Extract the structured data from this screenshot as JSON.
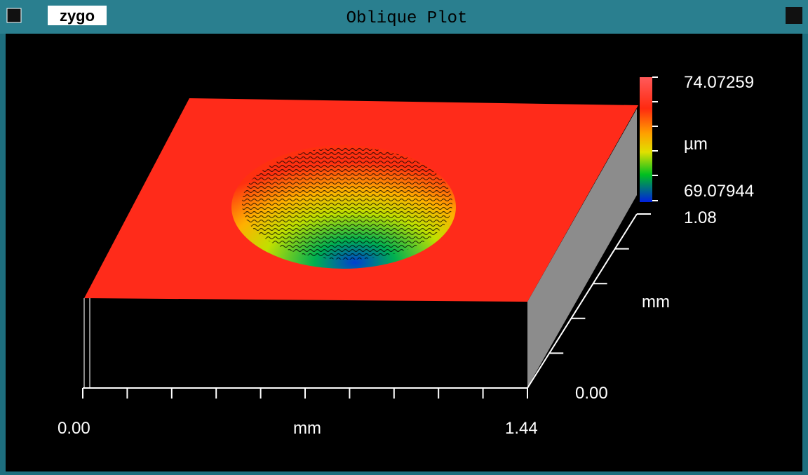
{
  "window": {
    "logo": "zygo",
    "title": "Oblique Plot"
  },
  "colorbar": {
    "max_label": "74.07259",
    "unit": "µm",
    "min_label": "69.07944"
  },
  "x_axis": {
    "start": "0.00",
    "unit": "mm",
    "end": "1.44"
  },
  "y_axis": {
    "start": "0.00",
    "unit": "mm",
    "end": "1.08"
  }
}
